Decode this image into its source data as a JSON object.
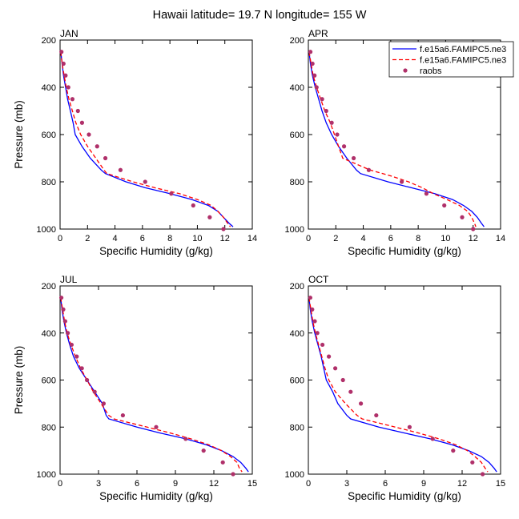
{
  "figure": {
    "title": "Hawaii  latitude= 19.7 N longitude= 155 W"
  },
  "legend": {
    "entries": [
      {
        "label": "f.e15a6.FAMIPC5.ne3",
        "style": "solid",
        "color": "#0000ff",
        "marker": "none"
      },
      {
        "label": "f.e15a6.FAMIPC5.ne3",
        "style": "dashed",
        "color": "#ff0000",
        "marker": "none"
      },
      {
        "label": "raobs",
        "style": "none",
        "color": "#b0306a",
        "marker": "circle"
      }
    ]
  },
  "colors": {
    "model_solid": "#0000ff",
    "model_dashed": "#ff0000",
    "raobs": "#b0306a"
  },
  "chart_data": [
    {
      "panel": "JAN",
      "title": "JAN",
      "type": "line",
      "xlabel": "Specific Humidity (g/kg)",
      "ylabel": "Pressure (mb)",
      "xlim": [
        0,
        14
      ],
      "ylim": [
        200,
        1000
      ],
      "y_reversed": true,
      "x_ticks": [
        0,
        2,
        4,
        6,
        8,
        10,
        12,
        14
      ],
      "y_ticks": [
        200,
        400,
        600,
        800,
        1000
      ],
      "series": [
        {
          "name": "f.e15a6.FAMIPC5.ne3",
          "style": "solid",
          "y": [
            250,
            300,
            350,
            400,
            450,
            500,
            550,
            600,
            650,
            700,
            750,
            765,
            800,
            825,
            850,
            875,
            900,
            925,
            950,
            975,
            990
          ],
          "x": [
            0.05,
            0.15,
            0.25,
            0.4,
            0.55,
            0.75,
            0.95,
            1.1,
            1.6,
            2.2,
            3.0,
            3.3,
            4.8,
            6.2,
            8.0,
            9.6,
            10.8,
            11.5,
            11.9,
            12.3,
            12.6
          ]
        },
        {
          "name": "f.e15a6.FAMIPC5.ne3",
          "style": "dashed",
          "y": [
            250,
            300,
            350,
            400,
            450,
            500,
            550,
            600,
            650,
            700,
            750,
            765,
            800,
            825,
            850,
            875,
            900,
            925,
            950,
            975,
            990
          ],
          "x": [
            0.05,
            0.15,
            0.3,
            0.45,
            0.65,
            0.9,
            1.15,
            1.5,
            2.0,
            2.6,
            3.2,
            3.4,
            5.3,
            6.9,
            8.7,
            10.0,
            11.0,
            11.5,
            11.9,
            12.2,
            12.4
          ]
        },
        {
          "name": "raobs",
          "style": "markers",
          "y": [
            250,
            300,
            350,
            400,
            450,
            500,
            550,
            600,
            650,
            700,
            750,
            800,
            850,
            900,
            950,
            1000
          ],
          "x": [
            0.1,
            0.25,
            0.4,
            0.6,
            0.9,
            1.3,
            1.6,
            2.1,
            2.7,
            3.3,
            4.4,
            6.2,
            8.1,
            9.7,
            10.9,
            11.9
          ]
        }
      ]
    },
    {
      "panel": "APR",
      "title": "APR",
      "type": "line",
      "xlabel": "Specific Humidity (g/kg)",
      "ylabel": "",
      "xlim": [
        0,
        14
      ],
      "ylim": [
        200,
        1000
      ],
      "y_reversed": true,
      "x_ticks": [
        0,
        2,
        4,
        6,
        8,
        10,
        12,
        14
      ],
      "y_ticks": [
        200,
        400,
        600,
        800,
        1000
      ],
      "series": [
        {
          "name": "f.e15a6.FAMIPC5.ne3",
          "style": "solid",
          "y": [
            250,
            300,
            350,
            400,
            450,
            500,
            550,
            600,
            650,
            700,
            750,
            765,
            800,
            825,
            850,
            875,
            900,
            925,
            950,
            975,
            990
          ],
          "x": [
            0.05,
            0.15,
            0.3,
            0.5,
            0.75,
            1.0,
            1.3,
            1.7,
            2.2,
            2.8,
            3.5,
            3.8,
            5.8,
            7.5,
            9.2,
            10.5,
            11.3,
            11.9,
            12.3,
            12.6,
            12.8
          ]
        },
        {
          "name": "f.e15a6.FAMIPC5.ne3",
          "style": "dashed",
          "y": [
            250,
            300,
            350,
            400,
            450,
            500,
            550,
            600,
            650,
            700,
            750,
            775,
            800,
            825,
            850,
            875,
            900,
            925,
            950,
            975,
            990
          ],
          "x": [
            0.05,
            0.2,
            0.35,
            0.6,
            0.9,
            1.2,
            1.6,
            1.9,
            2.2,
            2.5,
            4.5,
            6.0,
            7.3,
            8.3,
            9.1,
            10.1,
            11.0,
            11.6,
            11.9,
            12.1,
            12.2
          ]
        },
        {
          "name": "raobs",
          "style": "markers",
          "y": [
            250,
            300,
            350,
            400,
            450,
            500,
            550,
            600,
            650,
            700,
            750,
            800,
            850,
            900,
            950,
            1000
          ],
          "x": [
            0.15,
            0.3,
            0.45,
            0.6,
            1.0,
            1.3,
            1.7,
            2.1,
            2.6,
            3.3,
            4.4,
            6.8,
            8.6,
            9.9,
            11.2,
            12.0
          ]
        }
      ]
    },
    {
      "panel": "JUL",
      "title": "JUL",
      "type": "line",
      "xlabel": "Specific Humidity (g/kg)",
      "ylabel": "Pressure (mb)",
      "xlim": [
        0,
        15
      ],
      "ylim": [
        200,
        1000
      ],
      "y_reversed": true,
      "x_ticks": [
        0,
        3,
        6,
        9,
        12,
        15
      ],
      "y_ticks": [
        200,
        400,
        600,
        800,
        1000
      ],
      "series": [
        {
          "name": "f.e15a6.FAMIPC5.ne3",
          "style": "solid",
          "y": [
            250,
            300,
            350,
            400,
            450,
            500,
            550,
            600,
            650,
            700,
            750,
            765,
            800,
            825,
            850,
            875,
            900,
            925,
            950,
            975,
            990
          ],
          "x": [
            0.05,
            0.15,
            0.3,
            0.5,
            0.75,
            1.05,
            1.5,
            2.1,
            2.7,
            3.3,
            3.6,
            3.8,
            6.0,
            7.8,
            9.8,
            11.4,
            12.6,
            13.5,
            14.1,
            14.5,
            14.7
          ]
        },
        {
          "name": "f.e15a6.FAMIPC5.ne3",
          "style": "dashed",
          "y": [
            250,
            300,
            350,
            400,
            450,
            500,
            550,
            600,
            650,
            700,
            750,
            765,
            800,
            825,
            850,
            875,
            900,
            925,
            950,
            975,
            990
          ],
          "x": [
            0.05,
            0.2,
            0.35,
            0.55,
            0.85,
            1.2,
            1.6,
            2.1,
            2.6,
            3.2,
            3.8,
            4.2,
            6.8,
            8.6,
            10.2,
            11.6,
            12.6,
            13.3,
            13.8,
            14.0,
            14.2
          ]
        },
        {
          "name": "raobs",
          "style": "markers",
          "y": [
            250,
            300,
            350,
            400,
            450,
            500,
            550,
            600,
            650,
            700,
            750,
            800,
            850,
            900,
            950,
            1000
          ],
          "x": [
            0.1,
            0.25,
            0.4,
            0.6,
            0.9,
            1.3,
            1.7,
            2.1,
            2.7,
            3.4,
            4.9,
            7.5,
            9.8,
            11.2,
            12.7,
            13.5
          ]
        }
      ]
    },
    {
      "panel": "OCT",
      "title": "OCT",
      "type": "line",
      "xlabel": "Specific Humidity (g/kg)",
      "ylabel": "",
      "xlim": [
        0,
        15
      ],
      "ylim": [
        200,
        1000
      ],
      "y_reversed": true,
      "x_ticks": [
        0,
        3,
        6,
        9,
        12,
        15
      ],
      "y_ticks": [
        200,
        400,
        600,
        800,
        1000
      ],
      "series": [
        {
          "name": "f.e15a6.FAMIPC5.ne3",
          "style": "solid",
          "y": [
            250,
            300,
            350,
            400,
            450,
            500,
            550,
            600,
            650,
            700,
            750,
            765,
            800,
            825,
            850,
            875,
            900,
            925,
            950,
            975,
            990
          ],
          "x": [
            0.05,
            0.15,
            0.3,
            0.5,
            0.75,
            1.0,
            1.2,
            1.4,
            1.9,
            2.3,
            3.0,
            3.3,
            5.5,
            7.5,
            9.5,
            11.2,
            12.5,
            13.5,
            14.1,
            14.5,
            14.7
          ]
        },
        {
          "name": "f.e15a6.FAMIPC5.ne3",
          "style": "dashed",
          "y": [
            250,
            300,
            350,
            400,
            450,
            500,
            550,
            600,
            650,
            700,
            750,
            765,
            800,
            825,
            850,
            875,
            900,
            925,
            950,
            975,
            990
          ],
          "x": [
            0.05,
            0.2,
            0.35,
            0.55,
            0.8,
            1.05,
            1.3,
            1.6,
            2.1,
            2.9,
            3.8,
            4.2,
            6.8,
            8.6,
            10.2,
            11.5,
            12.4,
            13.0,
            13.5,
            13.8,
            14.0
          ]
        },
        {
          "name": "raobs",
          "style": "markers",
          "y": [
            250,
            300,
            350,
            400,
            450,
            500,
            550,
            600,
            650,
            700,
            750,
            800,
            850,
            900,
            950,
            1000
          ],
          "x": [
            0.15,
            0.3,
            0.5,
            0.7,
            1.1,
            1.6,
            2.1,
            2.7,
            3.3,
            4.1,
            5.3,
            7.9,
            9.7,
            11.3,
            12.8,
            13.6
          ]
        }
      ]
    }
  ]
}
